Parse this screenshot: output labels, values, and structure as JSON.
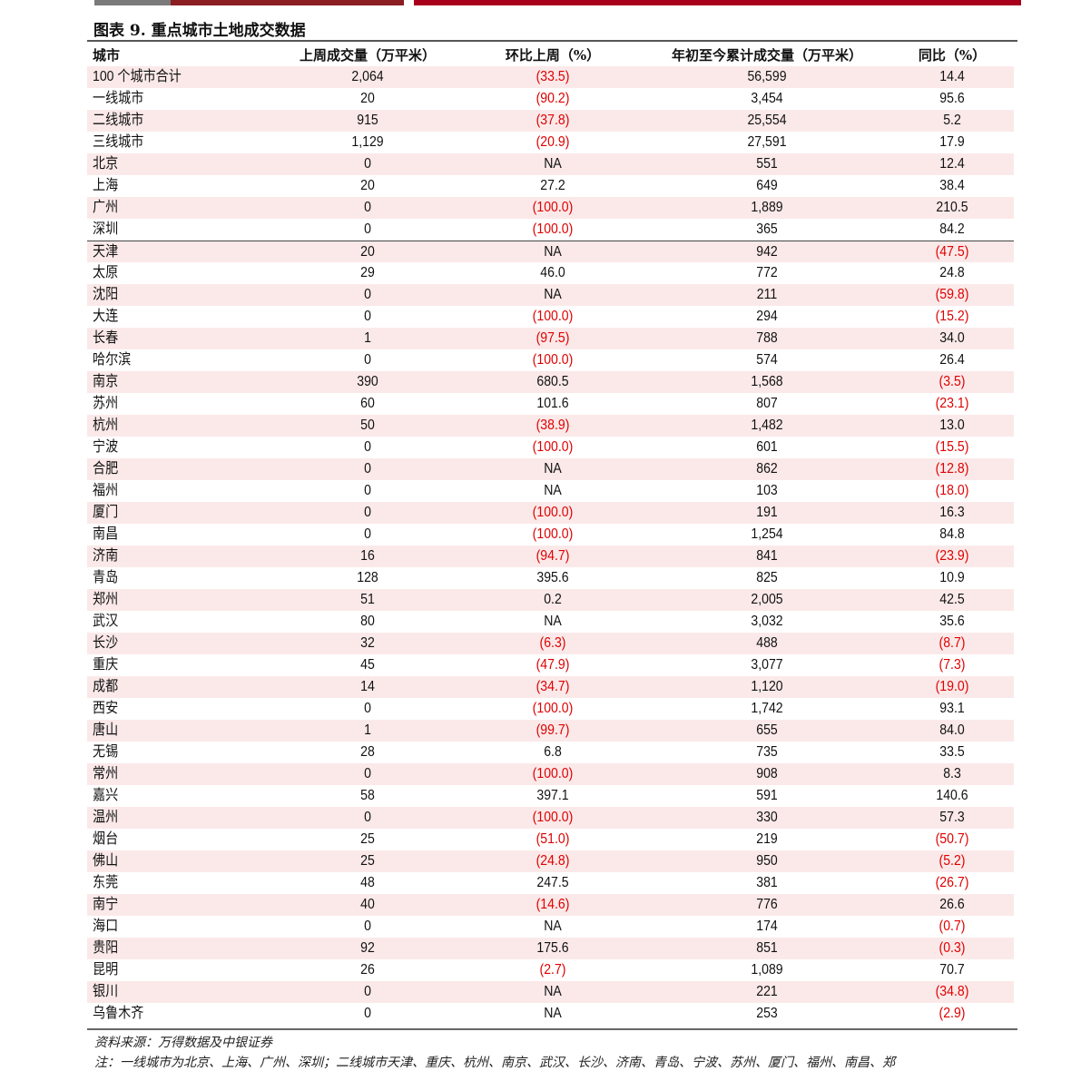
{
  "title": "图表 9. 重点城市土地成交数据",
  "columns": [
    "城市",
    "上周成交量（万平米）",
    "环比上周（%）",
    "年初至今累计成交量（万平米）",
    "同比（%）"
  ],
  "rows": [
    [
      "100 个城市合计",
      "2,064",
      "(33.5)",
      "56,599",
      "14.4"
    ],
    [
      "一线城市",
      "20",
      "(90.2)",
      "3,454",
      "95.6"
    ],
    [
      "二线城市",
      "915",
      "(37.8)",
      "25,554",
      "5.2"
    ],
    [
      "三线城市",
      "1,129",
      "(20.9)",
      "27,591",
      "17.9"
    ],
    [
      "北京",
      "0",
      "NA",
      "551",
      "12.4"
    ],
    [
      "上海",
      "20",
      "27.2",
      "649",
      "38.4"
    ],
    [
      "广州",
      "0",
      "(100.0)",
      "1,889",
      "210.5"
    ],
    [
      "深圳",
      "0",
      "(100.0)",
      "365",
      "84.2"
    ],
    [
      "天津",
      "20",
      "NA",
      "942",
      "(47.5)"
    ],
    [
      "太原",
      "29",
      "46.0",
      "772",
      "24.8"
    ],
    [
      "沈阳",
      "0",
      "NA",
      "211",
      "(59.8)"
    ],
    [
      "大连",
      "0",
      "(100.0)",
      "294",
      "(15.2)"
    ],
    [
      "长春",
      "1",
      "(97.5)",
      "788",
      "34.0"
    ],
    [
      "哈尔滨",
      "0",
      "(100.0)",
      "574",
      "26.4"
    ],
    [
      "南京",
      "390",
      "680.5",
      "1,568",
      "(3.5)"
    ],
    [
      "苏州",
      "60",
      "101.6",
      "807",
      "(23.1)"
    ],
    [
      "杭州",
      "50",
      "(38.9)",
      "1,482",
      "13.0"
    ],
    [
      "宁波",
      "0",
      "(100.0)",
      "601",
      "(15.5)"
    ],
    [
      "合肥",
      "0",
      "NA",
      "862",
      "(12.8)"
    ],
    [
      "福州",
      "0",
      "NA",
      "103",
      "(18.0)"
    ],
    [
      "厦门",
      "0",
      "(100.0)",
      "191",
      "16.3"
    ],
    [
      "南昌",
      "0",
      "(100.0)",
      "1,254",
      "84.8"
    ],
    [
      "济南",
      "16",
      "(94.7)",
      "841",
      "(23.9)"
    ],
    [
      "青岛",
      "128",
      "395.6",
      "825",
      "10.9"
    ],
    [
      "郑州",
      "51",
      "0.2",
      "2,005",
      "42.5"
    ],
    [
      "武汉",
      "80",
      "NA",
      "3,032",
      "35.6"
    ],
    [
      "长沙",
      "32",
      "(6.3)",
      "488",
      "(8.7)"
    ],
    [
      "重庆",
      "45",
      "(47.9)",
      "3,077",
      "(7.3)"
    ],
    [
      "成都",
      "14",
      "(34.7)",
      "1,120",
      "(19.0)"
    ],
    [
      "西安",
      "0",
      "(100.0)",
      "1,742",
      "93.1"
    ],
    [
      "唐山",
      "1",
      "(99.7)",
      "655",
      "84.0"
    ],
    [
      "无锡",
      "28",
      "6.8",
      "735",
      "33.5"
    ],
    [
      "常州",
      "0",
      "(100.0)",
      "908",
      "8.3"
    ],
    [
      "嘉兴",
      "58",
      "397.1",
      "591",
      "140.6"
    ],
    [
      "温州",
      "0",
      "(100.0)",
      "330",
      "57.3"
    ],
    [
      "烟台",
      "25",
      "(51.0)",
      "219",
      "(50.7)"
    ],
    [
      "佛山",
      "25",
      "(24.8)",
      "950",
      "(5.2)"
    ],
    [
      "东莞",
      "48",
      "247.5",
      "381",
      "(26.7)"
    ],
    [
      "南宁",
      "40",
      "(14.6)",
      "776",
      "26.6"
    ],
    [
      "海口",
      "0",
      "NA",
      "174",
      "(0.7)"
    ],
    [
      "贵阳",
      "92",
      "175.6",
      "851",
      "(0.3)"
    ],
    [
      "昆明",
      "26",
      "(2.7)",
      "1,089",
      "70.7"
    ],
    [
      "银川",
      "0",
      "NA",
      "221",
      "(34.8)"
    ],
    [
      "乌鲁木齐",
      "0",
      "NA",
      "253",
      "(2.9)"
    ]
  ],
  "source": "资料来源：万得数据及中银证券",
  "note": "注：一线城市为北京、上海、广州、深圳；二线城市天津、重庆、杭州、南京、武汉、长沙、济南、青岛、宁波、苏州、厦门、福州、南昌、郑",
  "colors": {
    "negative": "#e00000",
    "stripe": "#fbe9e9",
    "accent": "#a8001c"
  }
}
